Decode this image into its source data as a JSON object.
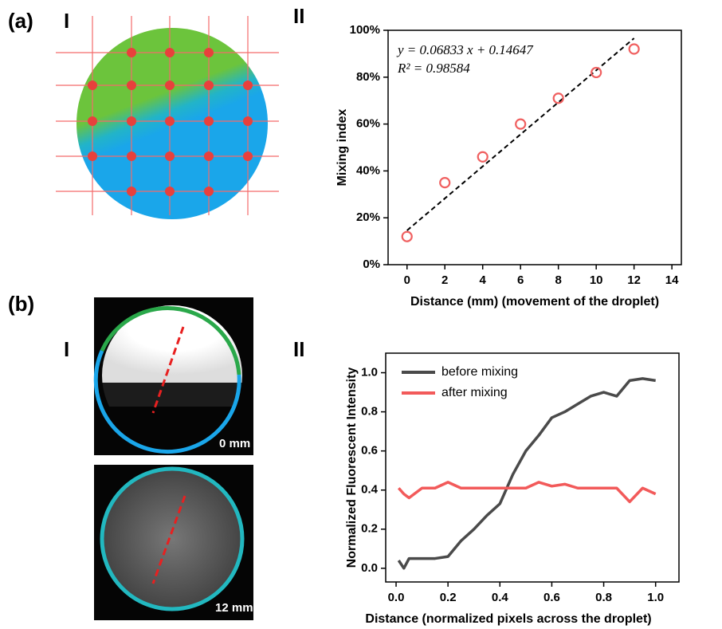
{
  "labels": {
    "a": "(a)",
    "a1": "I",
    "a2": "II",
    "b": "(b)",
    "b1": "I",
    "b2": "II",
    "img0": "0 mm",
    "img12": "12 mm"
  },
  "chart_data": [
    {
      "type": "scatter",
      "xlabel": "Distance (mm) (movement of the droplet)",
      "ylabel": "Mixing index",
      "x": [
        0,
        2,
        4,
        6,
        8,
        10,
        12
      ],
      "values": [
        12,
        35,
        46,
        60,
        71,
        82,
        92
      ],
      "color": "#f06060",
      "fit": {
        "x": [
          0,
          12
        ],
        "values": [
          14.6,
          96.6
        ],
        "color": "#000000"
      },
      "annotations": [
        "y = 0.06833 x + 0.14647",
        "R² = 0.98584"
      ],
      "xlim": [
        -1,
        14.5
      ],
      "ylim": [
        0,
        100
      ],
      "xticks": [
        0,
        2,
        4,
        6,
        8,
        10,
        12,
        14
      ],
      "yticks": [
        {
          "value": 0,
          "label": "0%"
        },
        {
          "value": 20,
          "label": "20%"
        },
        {
          "value": 40,
          "label": "40%"
        },
        {
          "value": 60,
          "label": "60%"
        },
        {
          "value": 80,
          "label": "80%"
        },
        {
          "value": 100,
          "label": "100%"
        }
      ]
    },
    {
      "type": "line",
      "xlabel": "Distance (normalized pixels across the droplet)",
      "ylabel": "Normalized Fluorescent Intensity",
      "x": [
        0.01,
        0.03,
        0.05,
        0.1,
        0.15,
        0.2,
        0.25,
        0.3,
        0.35,
        0.4,
        0.45,
        0.5,
        0.55,
        0.6,
        0.65,
        0.7,
        0.75,
        0.8,
        0.85,
        0.9,
        0.95,
        1.0
      ],
      "series": [
        {
          "name": "before mixing",
          "color": "#4a4a4a",
          "values": [
            0.04,
            0.0,
            0.05,
            0.05,
            0.05,
            0.06,
            0.14,
            0.2,
            0.27,
            0.33,
            0.48,
            0.6,
            0.68,
            0.77,
            0.8,
            0.84,
            0.88,
            0.9,
            0.88,
            0.96,
            0.97,
            0.96
          ]
        },
        {
          "name": "after mixing",
          "color": "#f25a5a",
          "values": [
            0.41,
            0.38,
            0.36,
            0.41,
            0.41,
            0.44,
            0.41,
            0.41,
            0.41,
            0.41,
            0.41,
            0.41,
            0.44,
            0.42,
            0.43,
            0.41,
            0.41,
            0.41,
            0.41,
            0.34,
            0.41,
            0.38
          ]
        }
      ],
      "xlim": [
        -0.04,
        1.09
      ],
      "ylim": [
        -0.07,
        1.1
      ],
      "xticks": [
        {
          "value": 0,
          "label": "0.0"
        },
        0.2,
        0.4,
        0.6,
        0.8,
        {
          "value": 1,
          "label": "1.0"
        }
      ],
      "yticks": [
        {
          "value": 0,
          "label": "0.0"
        },
        0.2,
        0.4,
        0.6,
        0.8,
        {
          "value": 1,
          "label": "1.0"
        }
      ]
    }
  ]
}
